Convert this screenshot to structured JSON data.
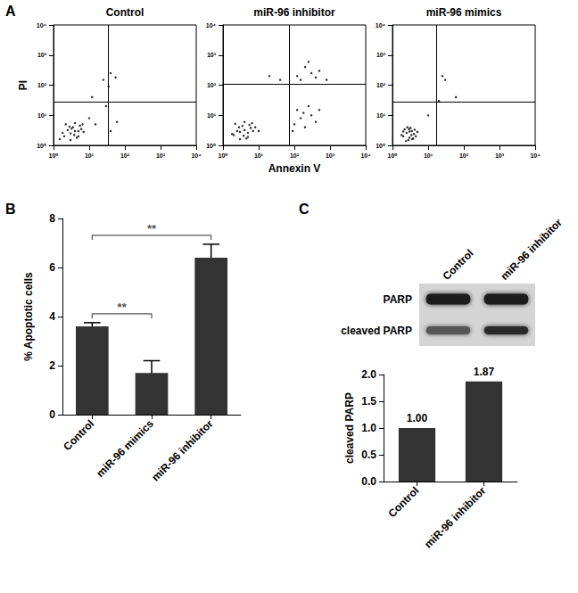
{
  "chart_data": [
    {
      "type": "scatter",
      "panel": "A",
      "title": "Control",
      "ylabel": "PI",
      "log": true,
      "xlim": [
        1,
        10000
      ],
      "ylim": [
        1,
        10000
      ],
      "xticks": [
        {
          "value": 1,
          "label": "10⁰"
        },
        {
          "value": 10,
          "label": "10¹"
        },
        {
          "value": 100,
          "label": "10²"
        },
        {
          "value": 1000,
          "label": "10³"
        },
        {
          "value": 10000,
          "label": "10⁴"
        }
      ],
      "yticks": [
        {
          "value": 1,
          "label": "10⁰"
        },
        {
          "value": 10,
          "label": "10¹"
        },
        {
          "value": 100,
          "label": "10²"
        },
        {
          "value": 1000,
          "label": "10³"
        },
        {
          "value": 10000,
          "label": "10⁴"
        }
      ],
      "gates": {
        "x": 34,
        "y": 28
      },
      "color": "#000000",
      "marker": "circle",
      "grid": false,
      "x": [
        2,
        3,
        4,
        5,
        3.5,
        2.5,
        6,
        4.5,
        3,
        5.5,
        2.2,
        7,
        4,
        1.8,
        3.8,
        6.5,
        2.8,
        5,
        3.2,
        1.5,
        10,
        15,
        40,
        60,
        30,
        25,
        40,
        55,
        35,
        12
      ],
      "values": [
        2,
        2.5,
        3,
        2,
        4,
        3.2,
        3.5,
        1.8,
        1.5,
        4.5,
        5,
        2.8,
        5.5,
        2.6,
        2.2,
        5,
        4.2,
        3,
        3.6,
        1.6,
        8,
        5,
        3,
        6,
        20,
        150,
        250,
        180,
        90,
        40
      ]
    },
    {
      "type": "scatter",
      "title": "miR-96 inhibitor",
      "xlabel": "Annexin V",
      "log": true,
      "xlim": [
        1,
        10000
      ],
      "ylim": [
        1,
        10000
      ],
      "xticks": [
        {
          "value": 1,
          "label": "10⁰"
        },
        {
          "value": 10,
          "label": "10¹"
        },
        {
          "value": 100,
          "label": "10²"
        },
        {
          "value": 1000,
          "label": "10³"
        },
        {
          "value": 10000,
          "label": "10⁴"
        }
      ],
      "yticks": [
        {
          "value": 1,
          "label": "10⁰"
        },
        {
          "value": 10,
          "label": "10¹"
        },
        {
          "value": 100,
          "label": "10²"
        },
        {
          "value": 1000,
          "label": "10³"
        },
        {
          "value": 10000,
          "label": "10⁴"
        }
      ],
      "gates": {
        "x": 72,
        "y": 110
      },
      "color": "#000000",
      "marker": "circle",
      "grid": false,
      "x": [
        2,
        3,
        4,
        5,
        3.5,
        2.5,
        6,
        4.5,
        3,
        5.5,
        2.2,
        7,
        4,
        1.8,
        3.8,
        6.5,
        2.8,
        5,
        8,
        10,
        100,
        150,
        200,
        300,
        120,
        250,
        400,
        180,
        90,
        500,
        150,
        300,
        200,
        500,
        120,
        400,
        800,
        250,
        20,
        40
      ],
      "values": [
        2.2,
        2.8,
        3.2,
        1.9,
        4.4,
        3,
        3.8,
        1.7,
        1.6,
        4.8,
        5.2,
        3,
        6,
        2.4,
        2.1,
        5.5,
        4,
        2.6,
        4,
        3,
        5,
        8,
        4,
        10,
        15,
        20,
        6,
        12,
        3,
        15,
        150,
        250,
        400,
        300,
        200,
        180,
        150,
        600,
        200,
        150
      ]
    },
    {
      "type": "scatter",
      "title": "miR-96 mimics",
      "log": true,
      "xlim": [
        1,
        10000
      ],
      "ylim": [
        1,
        10000
      ],
      "xticks": [
        {
          "value": 1,
          "label": "10⁰"
        },
        {
          "value": 10,
          "label": "10¹"
        },
        {
          "value": 100,
          "label": "10²"
        },
        {
          "value": 1000,
          "label": "10³"
        },
        {
          "value": 10000,
          "label": "10⁴"
        }
      ],
      "yticks": [
        {
          "value": 1,
          "label": "10⁰"
        },
        {
          "value": 10,
          "label": "10¹"
        },
        {
          "value": 100,
          "label": "10²"
        },
        {
          "value": 1000,
          "label": "10³"
        },
        {
          "value": 10000,
          "label": "10⁴"
        }
      ],
      "gates": {
        "x": 17,
        "y": 28
      },
      "color": "#000000",
      "marker": "circle",
      "grid": false,
      "x": [
        2,
        2.5,
        3,
        3.5,
        4,
        2.2,
        2.8,
        3.2,
        4.5,
        1.8,
        3,
        2.6,
        3.8,
        5,
        2.4,
        3.4,
        4.2,
        2,
        2.9,
        3.6,
        10,
        30,
        25,
        60,
        20
      ],
      "values": [
        2,
        2.6,
        1.8,
        3,
        2.4,
        3.4,
        1.5,
        3.8,
        2,
        2.2,
        2.9,
        4,
        1.7,
        2.8,
        1.4,
        2.2,
        3.3,
        2.9,
        3.5,
        1.6,
        10,
        150,
        200,
        40,
        30
      ]
    },
    {
      "type": "bar",
      "panel": "B",
      "ylabel": "% Apoptotic cells",
      "categories": [
        "Control",
        "miR-96 mimics",
        "miR-96 inhibitor"
      ],
      "values": [
        3.6,
        1.7,
        6.4
      ],
      "errors": [
        0.15,
        0.5,
        0.55
      ],
      "ylim": [
        0,
        8
      ],
      "yticks": [
        0,
        2,
        4,
        6,
        8
      ],
      "color": "#333333",
      "grid": false,
      "annotations": [
        {
          "text": "**",
          "from": "Control",
          "to": "miR-96 mimics"
        },
        {
          "text": "**",
          "from": "Control",
          "to": "miR-96 inhibitor"
        }
      ]
    },
    {
      "type": "blot",
      "panel": "C",
      "lanes": [
        "Control",
        "miR-96 inhibitor"
      ],
      "bands": [
        "PARP",
        "cleaved PARP"
      ]
    },
    {
      "type": "bar",
      "ylabel": "cleaved PARP",
      "categories": [
        "Control",
        "miR-96 inhibitor"
      ],
      "values": [
        1,
        1.87
      ],
      "value_labels": [
        "1.00",
        "1.87"
      ],
      "data_labels": true,
      "ylim": [
        0,
        2
      ],
      "yticks": [
        {
          "value": 0,
          "label": "0.0"
        },
        {
          "value": 0.5,
          "label": "0.5"
        },
        {
          "value": 1,
          "label": "1.0"
        },
        {
          "value": 1.5,
          "label": "1.5"
        },
        {
          "value": 2,
          "label": "2.0"
        }
      ],
      "color": "#333333",
      "grid": false
    }
  ]
}
